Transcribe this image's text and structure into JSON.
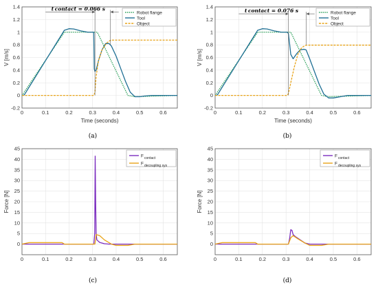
{
  "colors": {
    "robot_flange": "#2ca05a",
    "tool": "#1f6f94",
    "object": "#e8a317",
    "f_contact": "#7b2cbf",
    "f_decoupling": "#e8a317",
    "grid": "#e3e3e3",
    "axis": "#555555"
  },
  "chart_data": [
    {
      "type": "line",
      "caption": "(a)",
      "xlabel": "Time (seconds)",
      "ylabel": "V [m/s]",
      "xlim": [
        0,
        0.66
      ],
      "ylim": [
        -0.2,
        1.4
      ],
      "xticks": [
        0,
        0.1,
        0.2,
        0.3,
        0.4,
        0.5,
        0.6
      ],
      "yticks": [
        -0.2,
        0,
        0.2,
        0.4,
        0.6,
        0.8,
        1,
        1.2,
        1.4
      ],
      "grid": true,
      "legend_position": "top-right",
      "annotation": {
        "text": "t contact = 0.066 s",
        "x_start": 0.31,
        "x_end": 0.376,
        "y": 1.32
      },
      "series": [
        {
          "name": "Robot flange",
          "style": "dotted",
          "color_key": "robot_flange",
          "x": [
            0,
            0.18,
            0.32,
            0.45,
            0.48,
            0.66
          ],
          "y": [
            0,
            1.0,
            1.0,
            0.0,
            -0.02,
            0
          ]
        },
        {
          "name": "Tool",
          "style": "solid",
          "color_key": "tool",
          "x": [
            0,
            0.01,
            0.05,
            0.1,
            0.15,
            0.18,
            0.2,
            0.22,
            0.25,
            0.28,
            0.305,
            0.307,
            0.31,
            0.315,
            0.325,
            0.34,
            0.355,
            0.37,
            0.38,
            0.4,
            0.42,
            0.44,
            0.46,
            0.48,
            0.5,
            0.52,
            0.55,
            0.6,
            0.66
          ],
          "y": [
            0,
            0.01,
            0.25,
            0.55,
            0.85,
            1.03,
            1.055,
            1.05,
            1.02,
            1.0,
            1.0,
            0.42,
            0.38,
            0.4,
            0.55,
            0.72,
            0.82,
            0.82,
            0.78,
            0.62,
            0.42,
            0.22,
            0.05,
            -0.02,
            -0.02,
            -0.01,
            0.0,
            0.0,
            0.0
          ]
        },
        {
          "name": "Object",
          "style": "dashed",
          "color_key": "object",
          "x": [
            0,
            0.305,
            0.31,
            0.315,
            0.325,
            0.34,
            0.36,
            0.375,
            0.38,
            0.66
          ],
          "y": [
            0,
            0,
            0.05,
            0.3,
            0.55,
            0.72,
            0.83,
            0.87,
            0.875,
            0.875
          ]
        }
      ]
    },
    {
      "type": "line",
      "caption": "(b)",
      "xlabel": "Time (seconds)",
      "ylabel": "V [m/s]",
      "xlim": [
        0,
        0.66
      ],
      "ylim": [
        -0.2,
        1.4
      ],
      "xticks": [
        0,
        0.1,
        0.2,
        0.3,
        0.4,
        0.5,
        0.6
      ],
      "yticks": [
        -0.2,
        0,
        0.2,
        0.4,
        0.6,
        0.8,
        1,
        1.2,
        1.4
      ],
      "grid": true,
      "legend_position": "top-right",
      "annotation": {
        "text": "t contact = 0.076 s",
        "x_start": 0.31,
        "x_end": 0.386,
        "y": 1.29
      },
      "series": [
        {
          "name": "Robot flange",
          "style": "dotted",
          "color_key": "robot_flange",
          "x": [
            0,
            0.18,
            0.32,
            0.45,
            0.48,
            0.66
          ],
          "y": [
            0,
            1.0,
            1.0,
            0.0,
            -0.02,
            0
          ]
        },
        {
          "name": "Tool",
          "style": "solid",
          "color_key": "tool",
          "x": [
            0,
            0.01,
            0.05,
            0.1,
            0.15,
            0.18,
            0.2,
            0.22,
            0.25,
            0.28,
            0.305,
            0.31,
            0.315,
            0.32,
            0.33,
            0.345,
            0.36,
            0.375,
            0.385,
            0.4,
            0.42,
            0.44,
            0.46,
            0.48,
            0.5,
            0.53,
            0.56,
            0.6,
            0.66
          ],
          "y": [
            0,
            0.01,
            0.25,
            0.55,
            0.85,
            1.03,
            1.055,
            1.05,
            1.02,
            1.0,
            1.0,
            0.98,
            0.82,
            0.65,
            0.58,
            0.66,
            0.72,
            0.73,
            0.72,
            0.58,
            0.38,
            0.18,
            0.02,
            -0.04,
            -0.04,
            -0.02,
            0.0,
            0.0,
            0.0
          ]
        },
        {
          "name": "Object",
          "style": "dashed",
          "color_key": "object",
          "x": [
            0,
            0.305,
            0.31,
            0.32,
            0.335,
            0.35,
            0.365,
            0.38,
            0.39,
            0.66
          ],
          "y": [
            0,
            0,
            0.03,
            0.2,
            0.45,
            0.65,
            0.75,
            0.79,
            0.795,
            0.795
          ]
        }
      ]
    },
    {
      "type": "line",
      "caption": "(c)",
      "xlabel": "",
      "ylabel": "Force [N]",
      "xlim": [
        0,
        0.66
      ],
      "ylim": [
        -5,
        45
      ],
      "xticks": [
        0,
        0.1,
        0.2,
        0.3,
        0.4,
        0.5,
        0.6
      ],
      "yticks": [
        0,
        5,
        10,
        15,
        20,
        25,
        30,
        35,
        40,
        45
      ],
      "grid": true,
      "legend_position": "top-right",
      "series": [
        {
          "name": "F",
          "sub": "contact",
          "style": "solid",
          "color_key": "f_contact",
          "x": [
            0,
            0.305,
            0.309,
            0.311,
            0.313,
            0.315,
            0.318,
            0.33,
            0.35,
            0.37,
            0.66
          ],
          "y": [
            0,
            0,
            5,
            41.5,
            20,
            5,
            2,
            0.8,
            0.2,
            0,
            0
          ]
        },
        {
          "name": "F",
          "sub": "decoupling sys",
          "style": "solid",
          "color_key": "f_decoupling",
          "x": [
            0,
            0.03,
            0.17,
            0.18,
            0.3,
            0.31,
            0.315,
            0.33,
            0.35,
            0.38,
            0.4,
            0.45,
            0.47,
            0.48,
            0.66
          ],
          "y": [
            0,
            0.7,
            0.7,
            0,
            0,
            0,
            4.5,
            4,
            2,
            0,
            -0.6,
            -0.6,
            -0.2,
            0,
            0
          ]
        }
      ]
    },
    {
      "type": "line",
      "caption": "(d)",
      "xlabel": "",
      "ylabel": "Force [N]",
      "xlim": [
        0,
        0.66
      ],
      "ylim": [
        -5,
        45
      ],
      "xticks": [
        0,
        0.1,
        0.2,
        0.3,
        0.4,
        0.5,
        0.6
      ],
      "yticks": [
        0,
        5,
        10,
        15,
        20,
        25,
        30,
        35,
        40,
        45
      ],
      "grid": true,
      "legend_position": "top-right",
      "series": [
        {
          "name": "F",
          "sub": "contact",
          "style": "solid",
          "color_key": "f_contact",
          "x": [
            0,
            0.31,
            0.315,
            0.32,
            0.325,
            0.33,
            0.34,
            0.36,
            0.38,
            0.4,
            0.66
          ],
          "y": [
            0,
            0,
            2.5,
            6.8,
            6.5,
            4.5,
            3.5,
            2.0,
            0.5,
            0,
            0
          ]
        },
        {
          "name": "F",
          "sub": "decoupling sys",
          "style": "solid",
          "color_key": "f_decoupling",
          "x": [
            0,
            0.03,
            0.17,
            0.18,
            0.3,
            0.31,
            0.32,
            0.33,
            0.35,
            0.38,
            0.4,
            0.45,
            0.47,
            0.48,
            0.66
          ],
          "y": [
            0,
            0.7,
            0.7,
            0,
            0,
            0,
            3.0,
            4.0,
            2.5,
            0.5,
            -0.6,
            -0.6,
            -0.2,
            0,
            0
          ]
        }
      ]
    }
  ]
}
